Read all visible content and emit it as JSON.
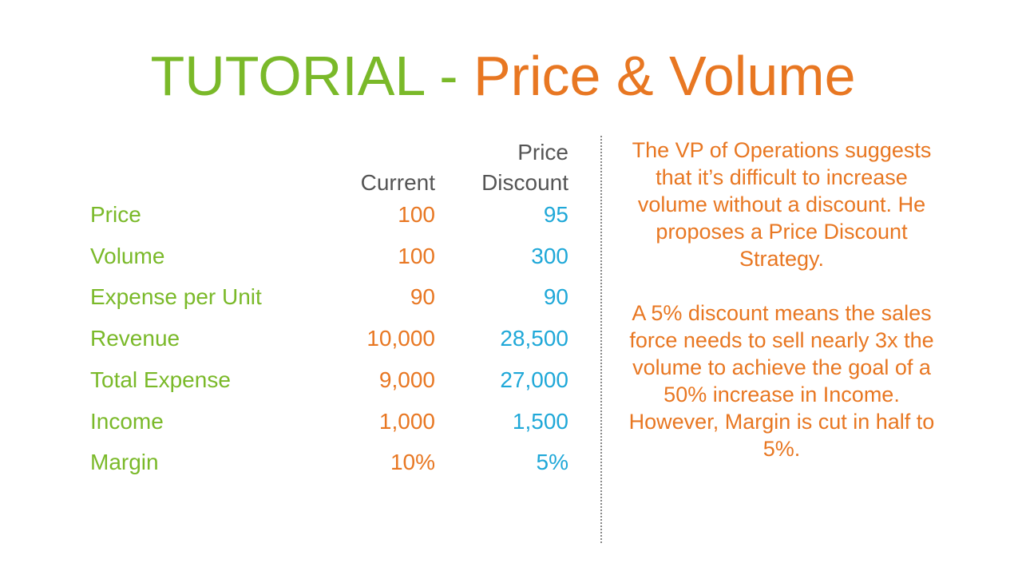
{
  "title": {
    "green": "TUTORIAL -",
    "orange": "Price & Volume"
  },
  "table": {
    "headers": [
      "Current",
      "Price Discount"
    ],
    "rows": [
      [
        "Price",
        "100",
        "95"
      ],
      [
        "Volume",
        "100",
        "300"
      ],
      [
        "Expense per Unit",
        "90",
        "90"
      ],
      [
        "Revenue",
        "10,000",
        "28,500"
      ],
      [
        "Total Expense",
        "9,000",
        "27,000"
      ],
      [
        "Income",
        "1,000",
        "1,500"
      ],
      [
        "Margin",
        "10%",
        "5%"
      ]
    ]
  },
  "notes": [
    "The VP of Operations suggests that it’s difficult to increase volume without a discount. He proposes a Price Discount Strategy.",
    "A 5% discount means the sales force needs to sell nearly 3x the volume to achieve the goal of a 50% increase in Income. However, Margin is cut in half to 5%."
  ]
}
